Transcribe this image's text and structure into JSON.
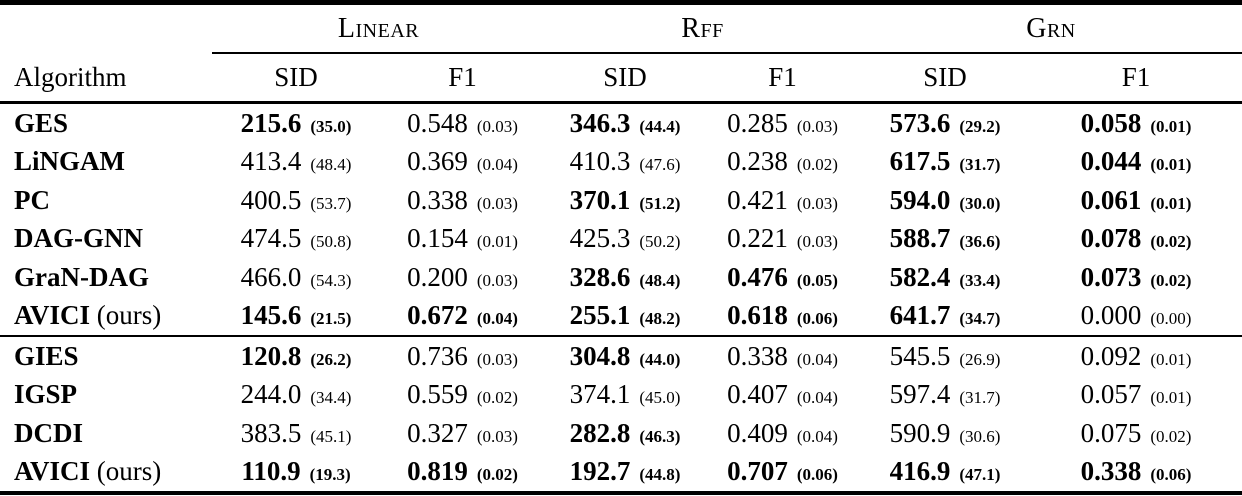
{
  "colors": {
    "text": "#000000",
    "background": "#ffffff",
    "rule": "#000000"
  },
  "table": {
    "col_header": "Algorithm",
    "group_headers": [
      {
        "label": "Linear"
      },
      {
        "label": "Rff"
      },
      {
        "label": "Grn"
      }
    ],
    "sub_headers": [
      "SID",
      "F1",
      "SID",
      "F1",
      "SID",
      "F1"
    ],
    "sections": [
      {
        "rows": [
          {
            "name": "GES",
            "suffix": "",
            "cells": [
              {
                "v": "215.6",
                "e": "(35.0)",
                "b": true
              },
              {
                "v": "0.548",
                "e": "(0.03)",
                "b": false
              },
              {
                "v": "346.3",
                "e": "(44.4)",
                "b": true
              },
              {
                "v": "0.285",
                "e": "(0.03)",
                "b": false
              },
              {
                "v": "573.6",
                "e": "(29.2)",
                "b": true
              },
              {
                "v": "0.058",
                "e": "(0.01)",
                "b": true
              }
            ]
          },
          {
            "name": "LiNGAM",
            "suffix": "",
            "cells": [
              {
                "v": "413.4",
                "e": "(48.4)",
                "b": false
              },
              {
                "v": "0.369",
                "e": "(0.04)",
                "b": false
              },
              {
                "v": "410.3",
                "e": "(47.6)",
                "b": false
              },
              {
                "v": "0.238",
                "e": "(0.02)",
                "b": false
              },
              {
                "v": "617.5",
                "e": "(31.7)",
                "b": true
              },
              {
                "v": "0.044",
                "e": "(0.01)",
                "b": true
              }
            ]
          },
          {
            "name": "PC",
            "suffix": "",
            "cells": [
              {
                "v": "400.5",
                "e": "(53.7)",
                "b": false
              },
              {
                "v": "0.338",
                "e": "(0.03)",
                "b": false
              },
              {
                "v": "370.1",
                "e": "(51.2)",
                "b": true
              },
              {
                "v": "0.421",
                "e": "(0.03)",
                "b": false
              },
              {
                "v": "594.0",
                "e": "(30.0)",
                "b": true
              },
              {
                "v": "0.061",
                "e": "(0.01)",
                "b": true
              }
            ]
          },
          {
            "name": "DAG-GNN",
            "suffix": "",
            "cells": [
              {
                "v": "474.5",
                "e": "(50.8)",
                "b": false
              },
              {
                "v": "0.154",
                "e": "(0.01)",
                "b": false
              },
              {
                "v": "425.3",
                "e": "(50.2)",
                "b": false
              },
              {
                "v": "0.221",
                "e": "(0.03)",
                "b": false
              },
              {
                "v": "588.7",
                "e": "(36.6)",
                "b": true
              },
              {
                "v": "0.078",
                "e": "(0.02)",
                "b": true
              }
            ]
          },
          {
            "name": "GraN-DAG",
            "suffix": "",
            "cells": [
              {
                "v": "466.0",
                "e": "(54.3)",
                "b": false
              },
              {
                "v": "0.200",
                "e": "(0.03)",
                "b": false
              },
              {
                "v": "328.6",
                "e": "(48.4)",
                "b": true
              },
              {
                "v": "0.476",
                "e": "(0.05)",
                "b": true
              },
              {
                "v": "582.4",
                "e": "(33.4)",
                "b": true
              },
              {
                "v": "0.073",
                "e": "(0.02)",
                "b": true
              }
            ]
          },
          {
            "name": "AVICI",
            "suffix": "(ours)",
            "cells": [
              {
                "v": "145.6",
                "e": "(21.5)",
                "b": true
              },
              {
                "v": "0.672",
                "e": "(0.04)",
                "b": true
              },
              {
                "v": "255.1",
                "e": "(48.2)",
                "b": true
              },
              {
                "v": "0.618",
                "e": "(0.06)",
                "b": true
              },
              {
                "v": "641.7",
                "e": "(34.7)",
                "b": true
              },
              {
                "v": "0.000",
                "e": "(0.00)",
                "b": false
              }
            ]
          }
        ]
      },
      {
        "rows": [
          {
            "name": "GIES",
            "suffix": "",
            "cells": [
              {
                "v": "120.8",
                "e": "(26.2)",
                "b": true
              },
              {
                "v": "0.736",
                "e": "(0.03)",
                "b": false
              },
              {
                "v": "304.8",
                "e": "(44.0)",
                "b": true
              },
              {
                "v": "0.338",
                "e": "(0.04)",
                "b": false
              },
              {
                "v": "545.5",
                "e": "(26.9)",
                "b": false
              },
              {
                "v": "0.092",
                "e": "(0.01)",
                "b": false
              }
            ]
          },
          {
            "name": "IGSP",
            "suffix": "",
            "cells": [
              {
                "v": "244.0",
                "e": "(34.4)",
                "b": false
              },
              {
                "v": "0.559",
                "e": "(0.02)",
                "b": false
              },
              {
                "v": "374.1",
                "e": "(45.0)",
                "b": false
              },
              {
                "v": "0.407",
                "e": "(0.04)",
                "b": false
              },
              {
                "v": "597.4",
                "e": "(31.7)",
                "b": false
              },
              {
                "v": "0.057",
                "e": "(0.01)",
                "b": false
              }
            ]
          },
          {
            "name": "DCDI",
            "suffix": "",
            "cells": [
              {
                "v": "383.5",
                "e": "(45.1)",
                "b": false
              },
              {
                "v": "0.327",
                "e": "(0.03)",
                "b": false
              },
              {
                "v": "282.8",
                "e": "(46.3)",
                "b": true
              },
              {
                "v": "0.409",
                "e": "(0.04)",
                "b": false
              },
              {
                "v": "590.9",
                "e": "(30.6)",
                "b": false
              },
              {
                "v": "0.075",
                "e": "(0.02)",
                "b": false
              }
            ]
          },
          {
            "name": "AVICI",
            "suffix": "(ours)",
            "cells": [
              {
                "v": "110.9",
                "e": "(19.3)",
                "b": true
              },
              {
                "v": "0.819",
                "e": "(0.02)",
                "b": true
              },
              {
                "v": "192.7",
                "e": "(44.8)",
                "b": true
              },
              {
                "v": "0.707",
                "e": "(0.06)",
                "b": true
              },
              {
                "v": "416.9",
                "e": "(47.1)",
                "b": true
              },
              {
                "v": "0.338",
                "e": "(0.06)",
                "b": true
              }
            ]
          }
        ]
      }
    ]
  }
}
